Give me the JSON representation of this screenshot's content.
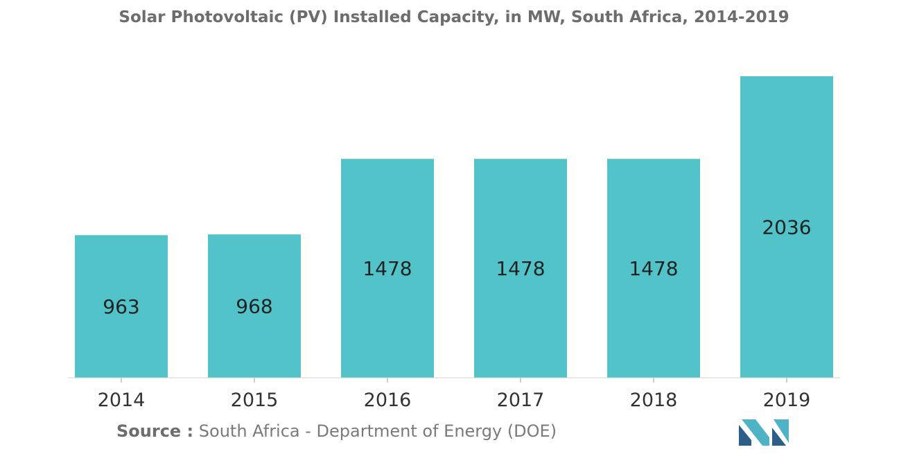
{
  "chart_data": {
    "type": "bar",
    "title": "Solar Photovoltaic (PV) Installed Capacity, in MW, South Africa, 2014-2019",
    "xlabel": "",
    "ylabel": "",
    "categories": [
      "2014",
      "2015",
      "2016",
      "2017",
      "2018",
      "2019"
    ],
    "values": [
      963,
      968,
      1478,
      1478,
      1478,
      2036
    ],
    "data_labels": [
      "963",
      "968",
      "1478",
      "1478",
      "1478",
      "2036"
    ],
    "ylim": [
      0,
      2036
    ],
    "bar_color": "#52c3c9",
    "grid": false,
    "legend": "none"
  },
  "source": {
    "label": "Source :",
    "text": "South Africa - Department of Energy (DOE)"
  },
  "colors": {
    "bar": "#52c3c9",
    "title": "#6d6d6d",
    "label_text": "#222222",
    "axis": "#999999",
    "logo_dark": "#2b5f8a",
    "logo_light": "#4fb3c6"
  },
  "logo": {
    "icon": "mordor-logo-icon"
  }
}
